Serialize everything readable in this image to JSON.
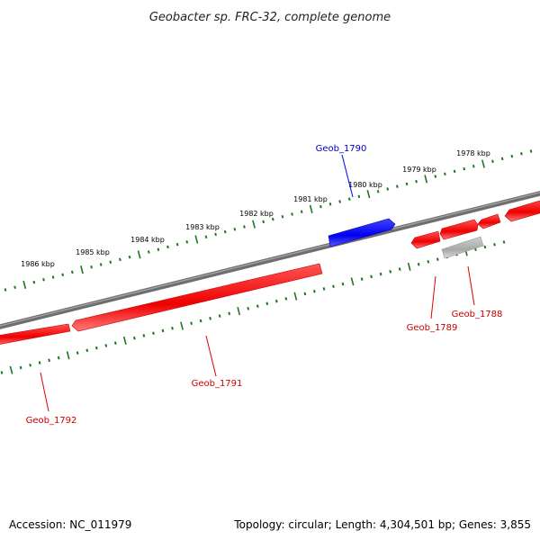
{
  "title": "Geobacter sp. FRC-32, complete genome",
  "footer": {
    "accession": "Accession: NC_011979",
    "summary": "Topology: circular; Length: 4,304,501 bp; Genes: 3,855"
  },
  "colors": {
    "backbone": "#7a7a7a",
    "ticks": "#1a7a1a",
    "forward_gene": "#ff0000",
    "reverse_gene": "#1010ee",
    "pseudo_gene": "#b8b8b8",
    "forward_label": "#cc0000",
    "reverse_label": "#0000cc"
  },
  "scale_labels": [
    "1986 kbp",
    "1985 kbp",
    "1984 kbp",
    "1983 kbp",
    "1982 kbp",
    "1981 kbp",
    "1980 kbp",
    "1979 kbp",
    "1978 kbp"
  ],
  "genes": [
    {
      "id": "Geob_1792",
      "strand": "inner",
      "color": "red"
    },
    {
      "id": "Geob_1791",
      "strand": "inner",
      "color": "red"
    },
    {
      "id": "Geob_1790",
      "strand": "outer",
      "color": "blue"
    },
    {
      "id": "Geob_1789",
      "strand": "inner",
      "color": "red"
    },
    {
      "id": "Geob_1788",
      "strand": "inner",
      "color": "gray"
    }
  ]
}
